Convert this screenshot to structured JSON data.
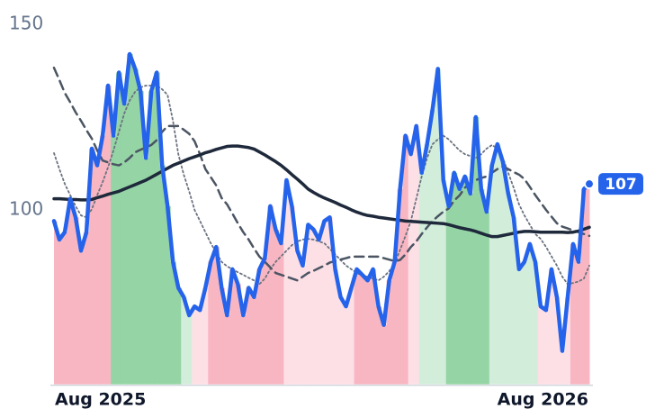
{
  "chart_data": {
    "type": "line",
    "categories": [
      "Aug 2025",
      null,
      null,
      null,
      null,
      null,
      null,
      null,
      null,
      null,
      null,
      null,
      null,
      null,
      null,
      null,
      null,
      null,
      null,
      null,
      null,
      null,
      null,
      null,
      null,
      null,
      null,
      null,
      null,
      null,
      null,
      null,
      null,
      null,
      null,
      null,
      null,
      null,
      null,
      null,
      null,
      null,
      null,
      null,
      null,
      null,
      null,
      null,
      null,
      null,
      null,
      null,
      null,
      null,
      null,
      null,
      null,
      null,
      null,
      null,
      null,
      null,
      null,
      null,
      null,
      null,
      null,
      null,
      null,
      null,
      null,
      null,
      null,
      null,
      null,
      null,
      null,
      null,
      null,
      null,
      null,
      null,
      null,
      null,
      null,
      null,
      null,
      null,
      null,
      null,
      null,
      null,
      null,
      null,
      null,
      null,
      null,
      null,
      null,
      "Aug 2026"
    ],
    "ylim": [
      53,
      155
    ],
    "yticks": [
      100,
      150
    ],
    "series": [
      {
        "color": "#2563eb",
        "line_style": "solid",
        "width": 4.5,
        "values": [
          97,
          92,
          94,
          103,
          98,
          89,
          94,
          116.5,
          112,
          120,
          133.5,
          120,
          137,
          128.6,
          142,
          138,
          132,
          114,
          132,
          137,
          112,
          101,
          86,
          79,
          76.5,
          71.6,
          74,
          73,
          79,
          86,
          90,
          79,
          71.6,
          84,
          80,
          71.6,
          79,
          76.5,
          84,
          87,
          101,
          94.7,
          91,
          108,
          101,
          89,
          85,
          96,
          94.7,
          92,
          97,
          98,
          84,
          76.5,
          74,
          79,
          84,
          82.5,
          81,
          84,
          74,
          69,
          81,
          86,
          105.6,
          120,
          115,
          122.6,
          110,
          117.7,
          127,
          138,
          108,
          101,
          110,
          105.6,
          109,
          104.4,
          125,
          105.6,
          99.5,
          112,
          117.7,
          113,
          104.4,
          98,
          84,
          86,
          90.8,
          86,
          74,
          73,
          84,
          76.5,
          62,
          76.5,
          90.8,
          86,
          105.6,
          107
        ]
      },
      {
        "color": "#1e293b",
        "line_style": "solid",
        "width": 3.5,
        "values": [
          103,
          103,
          102.9,
          102.8,
          102.8,
          102.7,
          102.7,
          102.8,
          103.3,
          103.7,
          104.2,
          104.6,
          105,
          105.6,
          106.2,
          106.8,
          107.4,
          108,
          108.8,
          109.6,
          110.4,
          111.2,
          112,
          112.6,
          113.2,
          113.8,
          114.3,
          114.8,
          115.4,
          115.8,
          116.3,
          116.7,
          117.1,
          117.2,
          117.2,
          117,
          116.8,
          116.4,
          115.6,
          114.8,
          113.9,
          113,
          112,
          110.8,
          109.5,
          108.3,
          107,
          105.6,
          104.7,
          103.9,
          103.2,
          102.6,
          102,
          101.3,
          100.7,
          100,
          99.4,
          98.9,
          98.5,
          98.3,
          98,
          97.8,
          97.6,
          97.4,
          97.2,
          97,
          96.9,
          96.8,
          96.7,
          96.6,
          96.5,
          96.4,
          96.3,
          96,
          95.6,
          95.2,
          94.9,
          94.6,
          94.2,
          93.7,
          93.2,
          92.8,
          92.8,
          93.1,
          93.4,
          93.7,
          94,
          94.2,
          94.2,
          94.1,
          94,
          94,
          94,
          94,
          94,
          93.9,
          94,
          94.3,
          94.8,
          95.3
        ]
      },
      {
        "color": "#4b5563",
        "line_style": "dashed",
        "width": 2.5,
        "values": [
          138.3,
          135,
          131.5,
          129,
          126.3,
          124,
          121.5,
          119.2,
          116,
          113.3,
          112.8,
          112.3,
          112,
          112.8,
          114,
          115.5,
          116.2,
          116.8,
          117.5,
          118.8,
          121,
          122.6,
          122.6,
          122.6,
          121.6,
          120.5,
          118.5,
          115,
          111,
          108.8,
          106.6,
          103.2,
          101.5,
          99,
          96.4,
          94,
          92,
          89.6,
          87.4,
          86,
          84.5,
          83,
          82.5,
          82,
          81.5,
          81,
          82,
          83,
          83.6,
          84.3,
          85,
          85.8,
          86.2,
          86.6,
          87,
          87.4,
          87.4,
          87.4,
          87.4,
          87.4,
          87.4,
          87,
          86.6,
          86.2,
          86.5,
          88,
          90,
          91.5,
          93.5,
          95.3,
          97,
          98.3,
          99.5,
          100.4,
          102.5,
          103.9,
          106,
          107.2,
          108,
          108.6,
          109,
          110,
          111,
          111.7,
          111,
          110.2,
          109.5,
          108.3,
          106.2,
          104,
          102,
          100,
          98.2,
          96.4,
          95.5,
          95,
          94.5,
          94,
          93.5,
          93
        ]
      },
      {
        "color": "#6b7280",
        "line_style": "dotted",
        "width": 1.8,
        "values": [
          115.3,
          111,
          107,
          104,
          101,
          98.5,
          98,
          100.2,
          104,
          107.5,
          111.5,
          116,
          121,
          126,
          129.5,
          131.8,
          133,
          133.5,
          133.5,
          133.5,
          132.5,
          131,
          124,
          115,
          109.5,
          105,
          100,
          97,
          94,
          91,
          88.5,
          86,
          84.8,
          84,
          83.2,
          82.5,
          81.7,
          81,
          80,
          81.5,
          84,
          86,
          87.5,
          89,
          90.5,
          91.5,
          92,
          92.2,
          92,
          91.5,
          91,
          89.5,
          88,
          86.5,
          85,
          84,
          83,
          82.3,
          82,
          81.5,
          81,
          82,
          83.5,
          85.5,
          89.2,
          93,
          97,
          103,
          109,
          114,
          117.7,
          119,
          120,
          119,
          117.5,
          116,
          115,
          114.5,
          114,
          115,
          116.5,
          117.5,
          116.5,
          114,
          110,
          106,
          101.5,
          98.5,
          96,
          93.5,
          92.2,
          90,
          87.5,
          85,
          82,
          80,
          80.3,
          80.7,
          81.5,
          85
        ]
      }
    ],
    "zones": [
      {
        "from": 0,
        "to": 10,
        "color": "#f8b6c2"
      },
      {
        "from": 11,
        "to": 23,
        "color": "#95d4a5"
      },
      {
        "from": 24,
        "to": 25,
        "color": "#d2eedb"
      },
      {
        "from": 26,
        "to": 28,
        "color": "#fde0e6"
      },
      {
        "from": 29,
        "to": 42,
        "color": "#f8b6c2"
      },
      {
        "from": 43,
        "to": 55,
        "color": "#fde0e6"
      },
      {
        "from": 56,
        "to": 65,
        "color": "#f8b6c2"
      },
      {
        "from": 66,
        "to": 67,
        "color": "#fde0e6"
      },
      {
        "from": 68,
        "to": 72,
        "color": "#d2eedb"
      },
      {
        "from": 73,
        "to": 80,
        "color": "#95d4a5"
      },
      {
        "from": 81,
        "to": 89,
        "color": "#d2eedb"
      },
      {
        "from": 90,
        "to": 95,
        "color": "#fde0e6"
      },
      {
        "from": 96,
        "to": 99,
        "color": "#f8b6c2"
      }
    ],
    "grid": false
  }
}
